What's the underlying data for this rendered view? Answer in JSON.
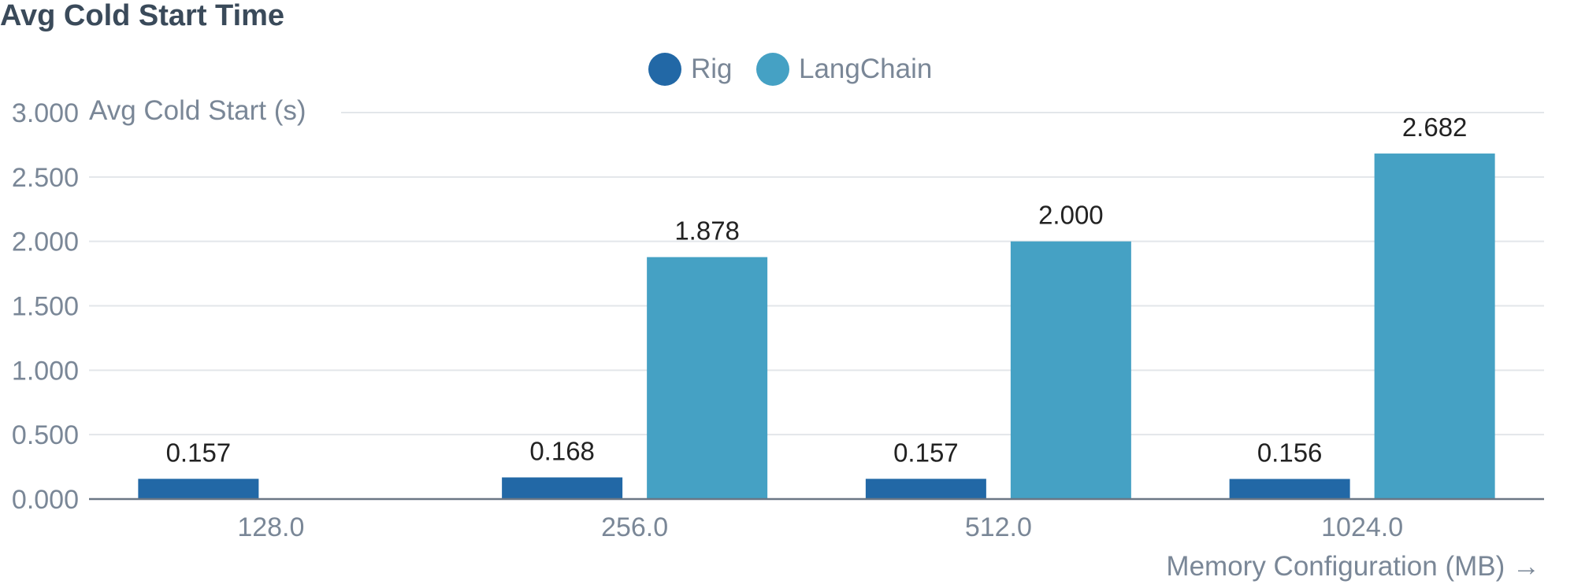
{
  "chart_data": {
    "type": "bar",
    "title": "Avg Cold Start Time",
    "categories": [
      "128.0",
      "256.0",
      "512.0",
      "1024.0"
    ],
    "series": [
      {
        "name": "Rig",
        "values": [
          0.157,
          0.168,
          0.157,
          0.156
        ],
        "labels": [
          "0.157",
          "0.168",
          "0.157",
          "0.156"
        ],
        "color": "#2268a6"
      },
      {
        "name": "LangChain",
        "values": [
          null,
          1.878,
          2.0,
          2.682
        ],
        "labels": [
          "",
          "1.878",
          "2.000",
          "2.682"
        ],
        "color": "#45a1c4"
      }
    ],
    "yticks": [
      "0.000",
      "0.500",
      "1.000",
      "1.500",
      "2.000",
      "2.500",
      "3.000"
    ],
    "ytick_values": [
      0,
      0.5,
      1,
      1.5,
      2,
      2.5,
      3
    ],
    "ylim": [
      0,
      3
    ],
    "ylabel": "Avg Cold Start (s)",
    "xlabel": "Memory Configuration (MB) →",
    "grid": true,
    "legend_position": "top-center"
  }
}
